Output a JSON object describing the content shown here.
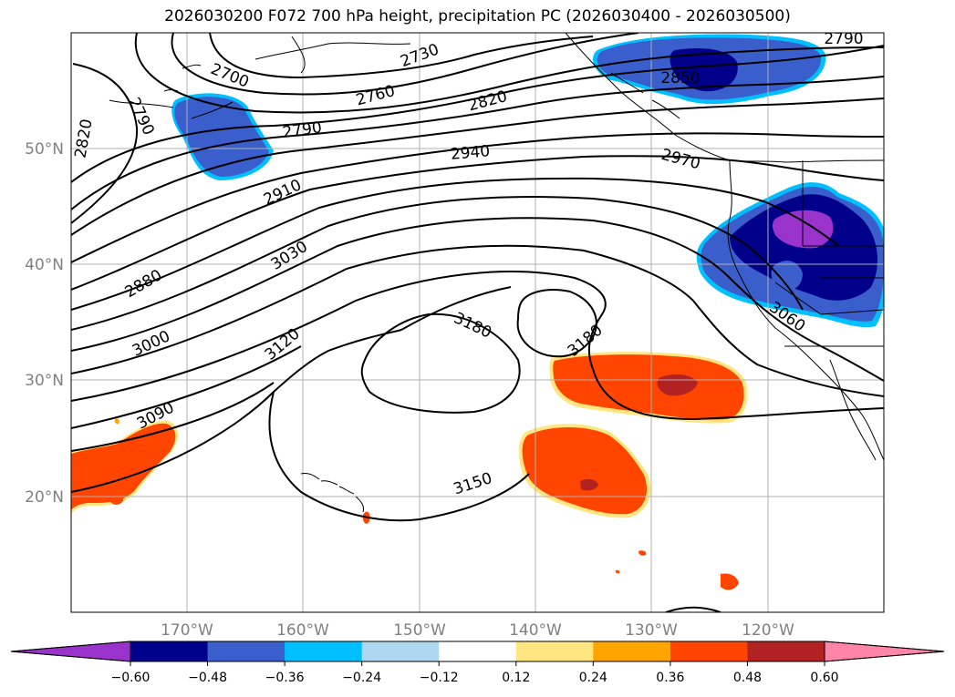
{
  "title": "2026030200 F072 700 hPa height, precipitation PC (2026030400 - 2026030500)",
  "latitude_labels": [
    "50°N",
    "40°N",
    "30°N",
    "20°N"
  ],
  "longitude_labels": [
    "170°W",
    "160°W",
    "150°W",
    "140°W",
    "130°W",
    "120°W"
  ],
  "contour_labels": [
    "2700",
    "2730",
    "2760",
    "2790",
    "2820",
    "2850",
    "2940",
    "2970",
    "2790",
    "2820",
    "2790",
    "2910",
    "3030",
    "2880",
    "3000",
    "3090",
    "3120",
    "3180",
    "3180",
    "3150",
    "3060"
  ],
  "colorbar": {
    "ticks": [
      "−0.60",
      "−0.48",
      "−0.36",
      "−0.24",
      "−0.12",
      "0.12",
      "0.24",
      "0.36",
      "0.48",
      "0.60"
    ],
    "colors": [
      "#9933cc",
      "#00008b",
      "#3a5fcd",
      "#00bfff",
      "#add8f0",
      "#ffffff",
      "#ffe680",
      "#ffa500",
      "#ff4500",
      "#b22222",
      "#ff85a8"
    ]
  },
  "chart_data": {
    "type": "map",
    "projection": "lat-lon",
    "lon_range": [
      -180,
      -110
    ],
    "lat_range": [
      10,
      60
    ],
    "grid": true,
    "variables": [
      "700 hPa height (contours)",
      "precipitation PC (shaded)"
    ],
    "height_contour_levels": [
      2700,
      2730,
      2760,
      2790,
      2820,
      2850,
      2880,
      2910,
      2940,
      2970,
      3000,
      3030,
      3060,
      3090,
      3120,
      3150,
      3180
    ],
    "shading_levels": [
      -0.6,
      -0.48,
      -0.36,
      -0.24,
      -0.12,
      0.12,
      0.24,
      0.36,
      0.48,
      0.6
    ],
    "colors": {
      "negative_max": "#9933cc",
      "positive_max": "#ff85a8"
    }
  }
}
